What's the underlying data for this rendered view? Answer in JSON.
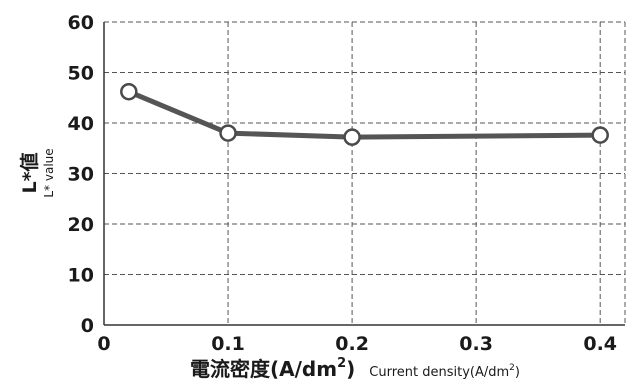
{
  "chart_data": {
    "type": "line",
    "title": "",
    "xlabel": "電流密度(A/dm²)",
    "xlabel_jp": "電流密度(A/dm",
    "xlabel_en": "Current density(A/dm",
    "xlabel_en_close": ")",
    "xlabel_close": ")",
    "xlabel_sup": "2",
    "ylabel": "L*値",
    "ylabel_sub": "L* value",
    "xlim": [
      0,
      0.42
    ],
    "ylim": [
      0,
      60
    ],
    "xticks": [
      0,
      0.1,
      0.2,
      0.3,
      0.4
    ],
    "xtick_labels": [
      "0",
      "0.1",
      "0.2",
      "0.3",
      "0.4"
    ],
    "yticks": [
      0,
      10,
      20,
      30,
      40,
      50,
      60
    ],
    "ytick_labels": [
      "0",
      "10",
      "20",
      "30",
      "40",
      "50",
      "60"
    ],
    "grid": true,
    "series": [
      {
        "x": [
          0.02,
          0.1,
          0.2,
          0.4
        ],
        "values": [
          46.2,
          38.0,
          37.2,
          37.6
        ]
      }
    ],
    "colors": {
      "line": "#555555",
      "marker_fill": "#ffffff",
      "marker_stroke": "#4a4a4a",
      "grid": "#555555",
      "axis": "#333333"
    }
  }
}
